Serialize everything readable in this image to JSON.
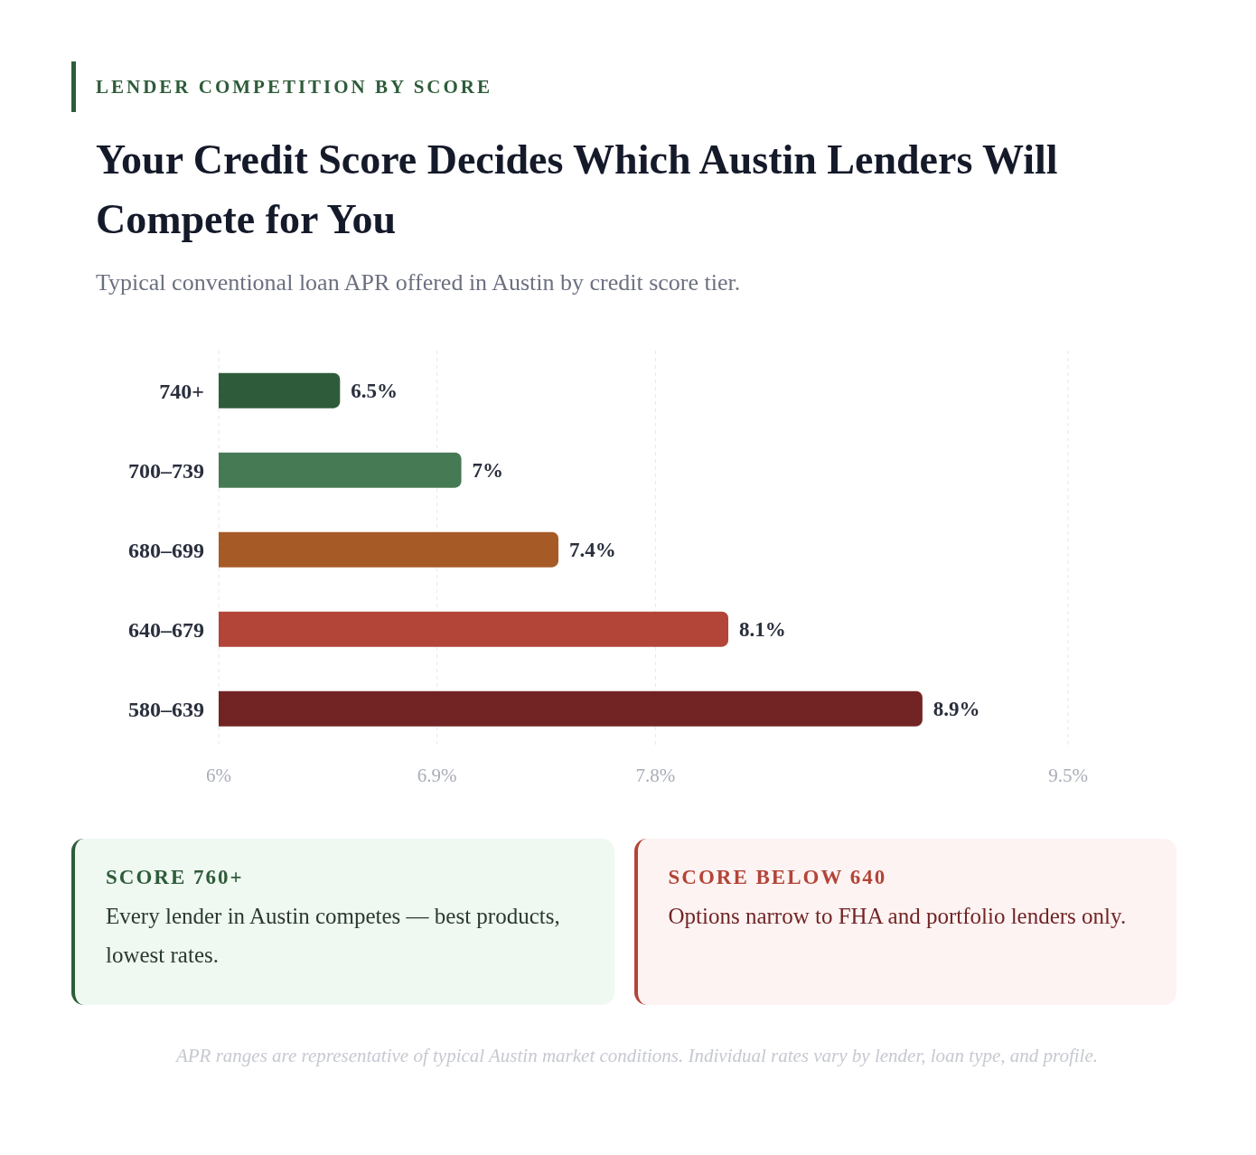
{
  "chart_data": {
    "type": "bar",
    "orientation": "horizontal",
    "title": "Your Credit Score Decides Which Austin Lenders Will Compete for You",
    "subtitle": "Typical conventional loan APR offered in Austin by credit score tier.",
    "categories": [
      "740+",
      "700–739",
      "680–699",
      "640–679",
      "580–639"
    ],
    "values": [
      6.5,
      7,
      7.4,
      8.1,
      8.9
    ],
    "colors": [
      "#2e5c3a",
      "#467a54",
      "#a65a25",
      "#b24538",
      "#722424"
    ],
    "value_labels": [
      "6.5%",
      "7%",
      "7.4%",
      "8.1%",
      "8.9%"
    ],
    "xlim": [
      6,
      9.5
    ],
    "xticks": [
      {
        "value": 6,
        "label": "6%"
      },
      {
        "value": 6.9,
        "label": "6.9%"
      },
      {
        "value": 7.8,
        "label": "7.8%"
      },
      {
        "value": 9.5,
        "label": "9.5%"
      }
    ],
    "grid": "x",
    "legend": false,
    "annotations": [
      "LENDER COMPETITION BY SCORE",
      "SCORE 760+",
      "Every lender in Austin competes — best products, lowest rates.",
      "SCORE BELOW 640",
      "Options narrow to FHA and portfolio lenders only.",
      "APR ranges are representative of typical Austin market conditions. Individual rates vary by lender, loan type, and profile."
    ]
  }
}
